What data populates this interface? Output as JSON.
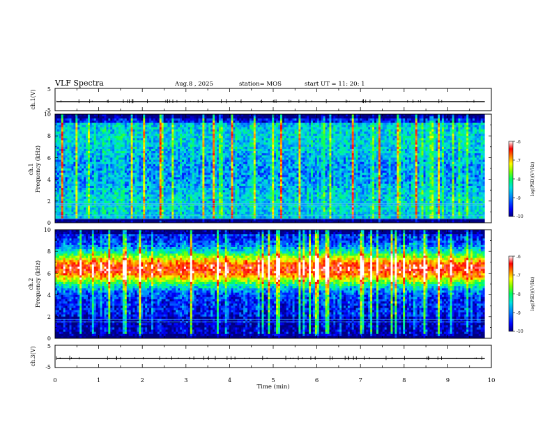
{
  "header": {
    "title": "VLF Spectra",
    "date": "Aug.8 , 2025",
    "station": "station= MOS",
    "start_ut": "start UT =   11: 20: 1"
  },
  "chart_data": {
    "type": "heatmap",
    "x_axis": {
      "label": "Time (min)",
      "range": [
        0,
        10
      ],
      "ticks": [
        "0",
        "1",
        "2",
        "3",
        "4",
        "5",
        "6",
        "7",
        "8",
        "9",
        "10"
      ]
    },
    "panels": [
      {
        "name": "ch1_waveform",
        "type": "line",
        "ylabel": "ch.1(V)",
        "ylim": [
          -5,
          5
        ],
        "yticks": [
          "5",
          "-5"
        ],
        "baseline_value": 0
      },
      {
        "name": "ch1_spectrogram",
        "type": "heatmap",
        "ylabel_lines": [
          "ch.1",
          "Frequency (kHz)"
        ],
        "ylim": [
          0,
          10
        ],
        "yticks": [
          "0",
          "2",
          "4",
          "6",
          "8",
          "10"
        ],
        "data_end_min": 9.85,
        "intensity_profile": "broadband 1-9.5 kHz around -8.5, strong impulsive vertical sferics reaching -6, quiet below 0.5 kHz",
        "colorbar": {
          "label": "log(PSD)(V²/Hz)",
          "range": [
            -10,
            -6
          ],
          "ticks": [
            "-6",
            "-7",
            "-8",
            "-9",
            "-10"
          ]
        },
        "horizontal_lines_khz": [
          0.35,
          0.65,
          1.6,
          1.75
        ]
      },
      {
        "name": "ch2_spectrogram",
        "type": "heatmap",
        "ylabel_lines": [
          "ch.2",
          "Frequency (kHz)"
        ],
        "ylim": [
          0,
          10
        ],
        "yticks": [
          "0",
          "2",
          "4",
          "6",
          "8",
          "10"
        ],
        "data_end_min": 9.85,
        "intensity_profile": "strong band 4.5-8 kHz peaking near 6.5 kHz at -6.5, weaker below 2 kHz, vertical sferics",
        "colorbar": {
          "label": "log(PSD)(V²/Hz)",
          "range": [
            -10,
            -6
          ],
          "ticks": [
            "-6",
            "-7",
            "-8",
            "-9",
            "-10"
          ]
        },
        "horizontal_lines_khz": [
          1.5,
          1.75
        ]
      },
      {
        "name": "ch3_waveform",
        "type": "line",
        "ylabel": "ch.3(V)",
        "ylim": [
          -5,
          5
        ],
        "yticks": [
          "5",
          "-5"
        ],
        "baseline_value": 0
      }
    ],
    "colors": {
      "colormap": [
        "#000080",
        "#0000ff",
        "#0080ff",
        "#00e0e0",
        "#00ff60",
        "#80ff00",
        "#ffff00",
        "#ff8000",
        "#ff0000",
        "#ffffff"
      ]
    }
  }
}
